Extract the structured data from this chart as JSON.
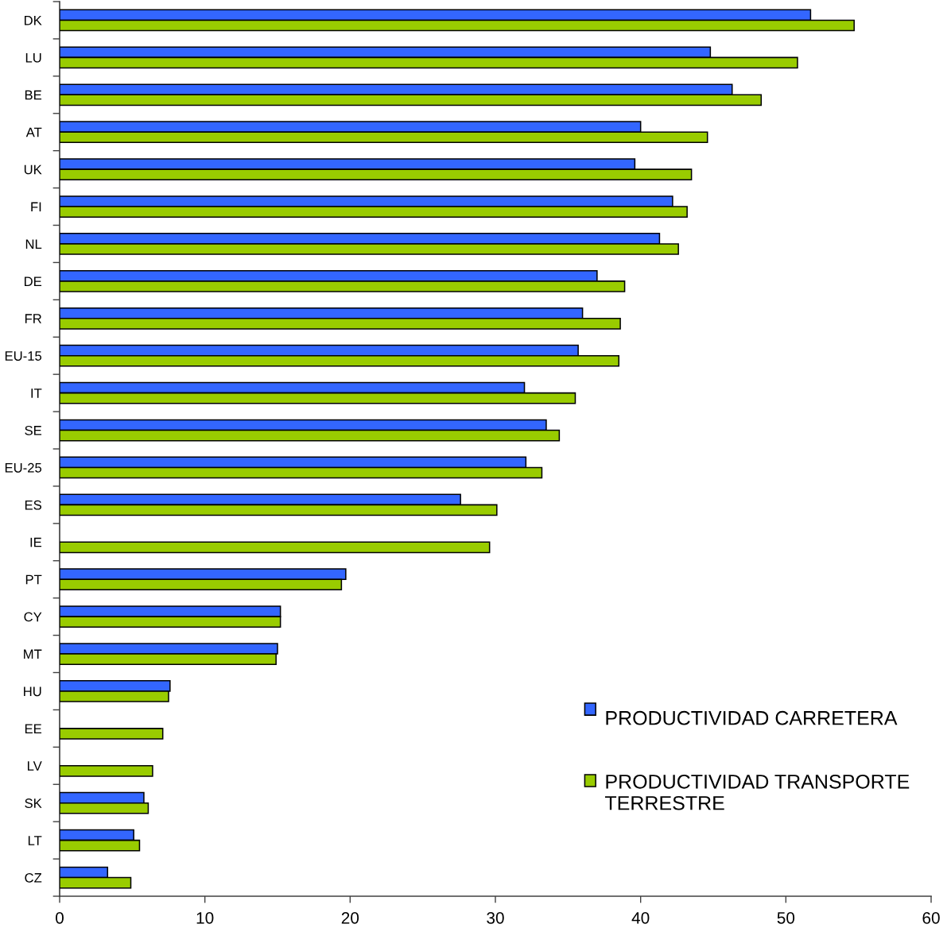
{
  "chart_data": {
    "type": "bar",
    "orientation": "horizontal",
    "categories": [
      "DK",
      "LU",
      "BE",
      "AT",
      "UK",
      "FI",
      "NL",
      "DE",
      "FR",
      "EU-15",
      "IT",
      "SE",
      "EU-25",
      "ES",
      "IE",
      "PT",
      "CY",
      "MT",
      "HU",
      "EE",
      "LV",
      "SK",
      "LT",
      "CZ"
    ],
    "series": [
      {
        "name": "PRODUCTIVIDAD CARRETERA",
        "color": "#3366ff",
        "values": [
          51.7,
          44.8,
          46.3,
          40.0,
          39.6,
          42.2,
          41.3,
          37.0,
          36.0,
          35.7,
          32.0,
          33.5,
          32.1,
          27.6,
          null,
          19.7,
          15.2,
          15.0,
          7.6,
          null,
          null,
          5.8,
          5.1,
          3.3
        ]
      },
      {
        "name": "PRODUCTIVIDAD TRANSPORTE TERRESTRE",
        "color": "#99cc00",
        "values": [
          54.7,
          50.8,
          48.3,
          44.6,
          43.5,
          43.2,
          42.6,
          38.9,
          38.6,
          38.5,
          35.5,
          34.4,
          33.2,
          30.1,
          29.6,
          19.4,
          15.2,
          14.9,
          7.5,
          7.1,
          6.4,
          6.1,
          5.5,
          4.9
        ]
      }
    ],
    "xlim": [
      0,
      60
    ],
    "xticks": [
      0,
      10,
      20,
      30,
      40,
      50,
      60
    ],
    "grid": false,
    "legend": "lower right"
  }
}
